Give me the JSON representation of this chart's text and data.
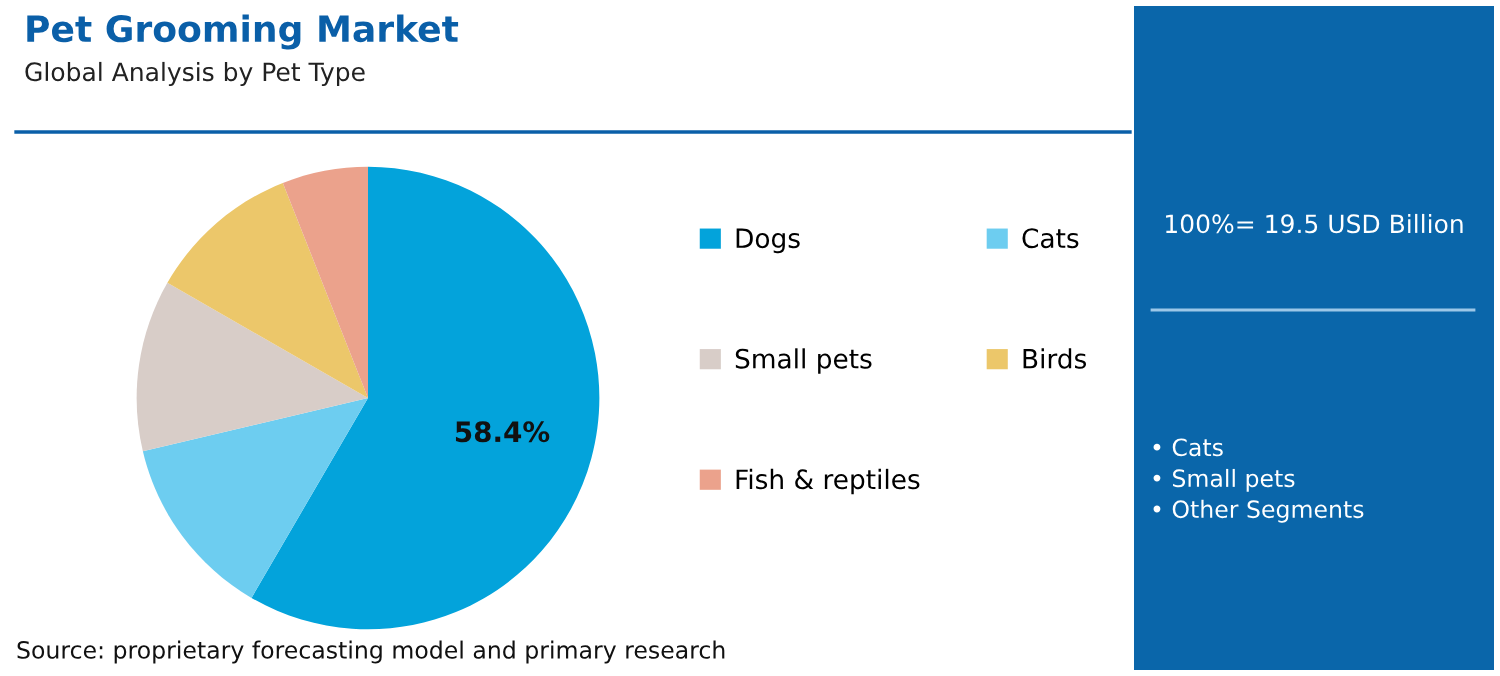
{
  "chart_data": {
    "type": "pie",
    "title": "Pet Grooming Market",
    "subtitle": "Global Analysis by Pet Type",
    "categories": [
      "Dogs",
      "Cats",
      "Small pets",
      "Birds",
      "Fish & reptiles"
    ],
    "values": [
      58.4,
      12.9,
      12.0,
      10.7,
      6.0
    ],
    "colors": [
      "#03a3db",
      "#6dcdf0",
      "#d8cdc8",
      "#ecc76a",
      "#eba28c"
    ],
    "value_labels": [
      "58.4%",
      null,
      null,
      null,
      null
    ],
    "legend": "right",
    "annotations": [
      "100%= 19.5 USD Billion",
      "• Cats\n• Small pets\n• Other Segments",
      "Source: proprietary forecasting model and primary research"
    ]
  }
}
